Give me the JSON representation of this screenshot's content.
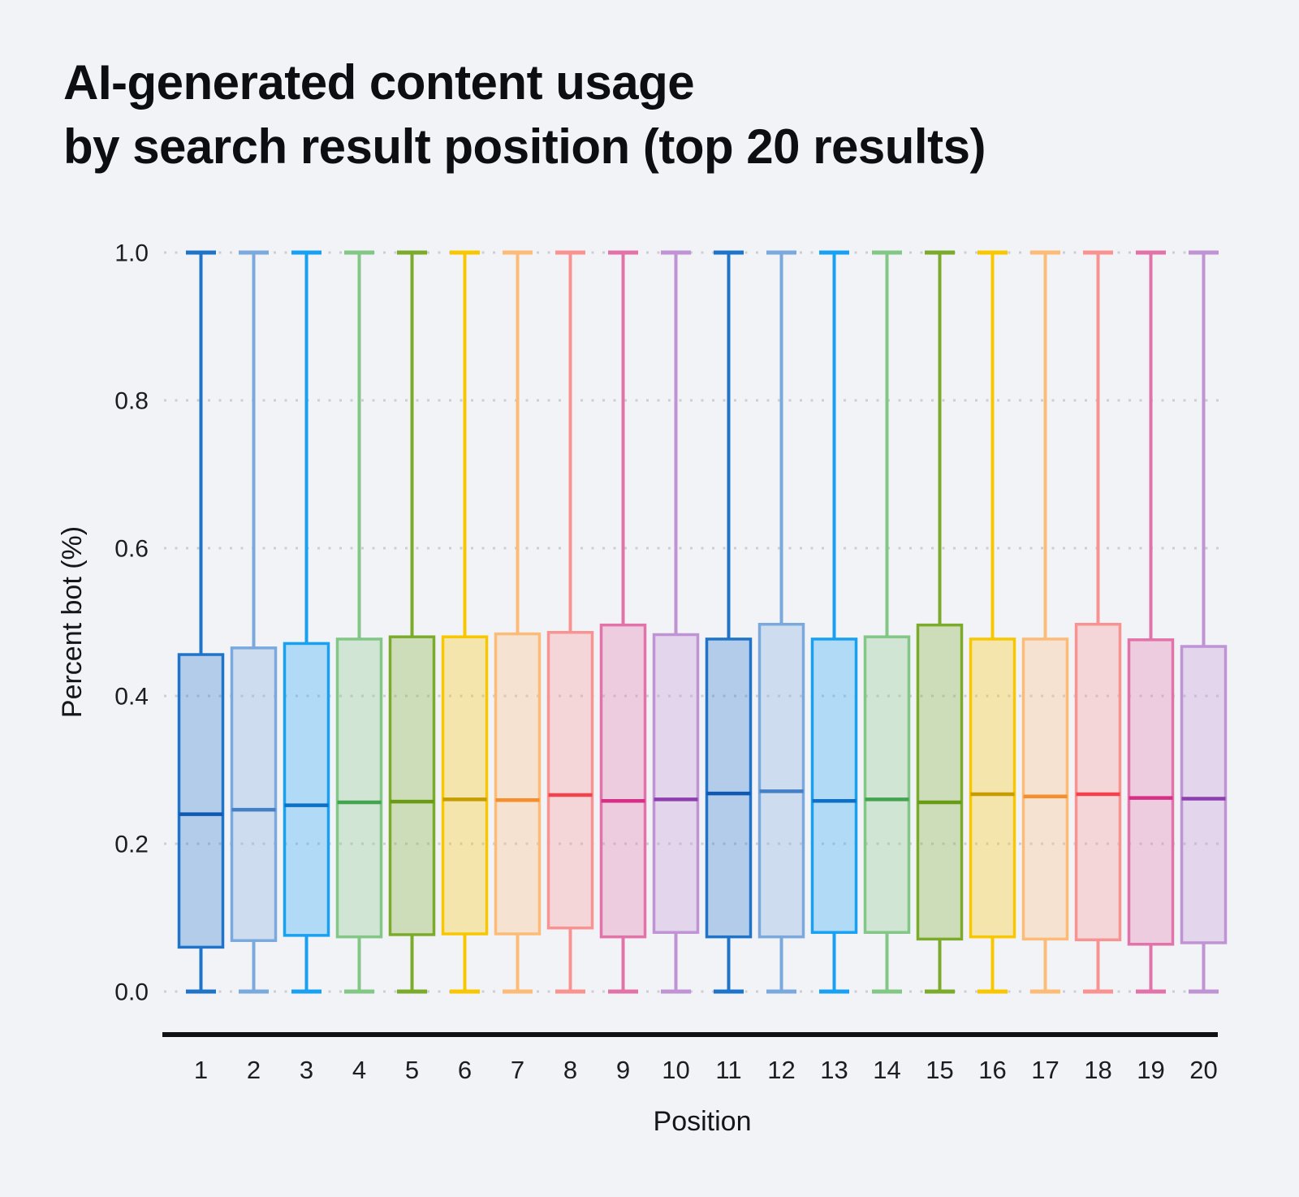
{
  "page": {
    "background": "#f2f3f6"
  },
  "title": {
    "line1": "AI-generated content usage",
    "line2": "by search result position (top 20 results)"
  },
  "chart_data": {
    "type": "box",
    "title": "AI-generated content usage by search result position (top 20 results)",
    "xlabel": "Position",
    "ylabel": "Percent bot (%)",
    "ylim": [
      0.0,
      1.0
    ],
    "yticks": [
      0.0,
      0.2,
      0.4,
      0.6,
      0.8,
      1.0
    ],
    "ytick_labels": [
      "0.0",
      "0.2",
      "0.4",
      "0.6",
      "0.8",
      "1.0"
    ],
    "grid": "horizontal dotted, color #cdced4, drawn under semi-transparent boxes",
    "legend": "none",
    "categories": [
      "1",
      "2",
      "3",
      "4",
      "5",
      "6",
      "7",
      "8",
      "9",
      "10",
      "11",
      "12",
      "13",
      "14",
      "15",
      "16",
      "17",
      "18",
      "19",
      "20"
    ],
    "box_fill_opacity": 0.3,
    "series": [
      {
        "position": "1",
        "whisker_low": 0.0,
        "q1": 0.06,
        "median": 0.24,
        "q3": 0.456,
        "whisker_high": 1.0,
        "color": "#1f74c9",
        "median_color": "#0e59b4"
      },
      {
        "position": "2",
        "whisker_low": 0.0,
        "q1": 0.069,
        "median": 0.246,
        "q3": 0.465,
        "whisker_high": 1.0,
        "color": "#7aa9dd",
        "median_color": "#4480c6"
      },
      {
        "position": "3",
        "whisker_low": 0.0,
        "q1": 0.076,
        "median": 0.252,
        "q3": 0.471,
        "whisker_high": 1.0,
        "color": "#18a1f2",
        "median_color": "#0d70c6"
      },
      {
        "position": "4",
        "whisker_low": 0.0,
        "q1": 0.074,
        "median": 0.256,
        "q3": 0.477,
        "whisker_high": 1.0,
        "color": "#82c785",
        "median_color": "#43a34f"
      },
      {
        "position": "5",
        "whisker_low": 0.0,
        "q1": 0.077,
        "median": 0.257,
        "q3": 0.48,
        "whisker_high": 1.0,
        "color": "#7cab2b",
        "median_color": "#699c14"
      },
      {
        "position": "6",
        "whisker_low": 0.0,
        "q1": 0.078,
        "median": 0.26,
        "q3": 0.48,
        "whisker_high": 1.0,
        "color": "#f8c700",
        "median_color": "#c79c01"
      },
      {
        "position": "7",
        "whisker_low": 0.0,
        "q1": 0.078,
        "median": 0.259,
        "q3": 0.484,
        "whisker_high": 1.0,
        "color": "#fcbc77",
        "median_color": "#f78e2d"
      },
      {
        "position": "8",
        "whisker_low": 0.0,
        "q1": 0.086,
        "median": 0.266,
        "q3": 0.486,
        "whisker_high": 1.0,
        "color": "#f89392",
        "median_color": "#f4424d"
      },
      {
        "position": "9",
        "whisker_low": 0.0,
        "q1": 0.074,
        "median": 0.258,
        "q3": 0.496,
        "whisker_high": 1.0,
        "color": "#e273a9",
        "median_color": "#d62f86"
      },
      {
        "position": "10",
        "whisker_low": 0.0,
        "q1": 0.08,
        "median": 0.26,
        "q3": 0.483,
        "whisker_high": 1.0,
        "color": "#bf93d4",
        "median_color": "#8d3fae"
      },
      {
        "position": "11",
        "whisker_low": 0.0,
        "q1": 0.074,
        "median": 0.268,
        "q3": 0.477,
        "whisker_high": 1.0,
        "color": "#1f74c9",
        "median_color": "#0e59b4"
      },
      {
        "position": "12",
        "whisker_low": 0.0,
        "q1": 0.074,
        "median": 0.271,
        "q3": 0.497,
        "whisker_high": 1.0,
        "color": "#7aa9dd",
        "median_color": "#4480c6"
      },
      {
        "position": "13",
        "whisker_low": 0.0,
        "q1": 0.08,
        "median": 0.258,
        "q3": 0.477,
        "whisker_high": 1.0,
        "color": "#18a1f2",
        "median_color": "#0d70c6"
      },
      {
        "position": "14",
        "whisker_low": 0.0,
        "q1": 0.08,
        "median": 0.26,
        "q3": 0.48,
        "whisker_high": 1.0,
        "color": "#82c785",
        "median_color": "#43a34f"
      },
      {
        "position": "15",
        "whisker_low": 0.0,
        "q1": 0.071,
        "median": 0.256,
        "q3": 0.496,
        "whisker_high": 1.0,
        "color": "#7cab2b",
        "median_color": "#699c14"
      },
      {
        "position": "16",
        "whisker_low": 0.0,
        "q1": 0.074,
        "median": 0.267,
        "q3": 0.477,
        "whisker_high": 1.0,
        "color": "#f8c700",
        "median_color": "#c79c01"
      },
      {
        "position": "17",
        "whisker_low": 0.0,
        "q1": 0.071,
        "median": 0.264,
        "q3": 0.477,
        "whisker_high": 1.0,
        "color": "#fcbc77",
        "median_color": "#f78e2d"
      },
      {
        "position": "18",
        "whisker_low": 0.0,
        "q1": 0.07,
        "median": 0.267,
        "q3": 0.497,
        "whisker_high": 1.0,
        "color": "#f89392",
        "median_color": "#f4424d"
      },
      {
        "position": "19",
        "whisker_low": 0.0,
        "q1": 0.064,
        "median": 0.262,
        "q3": 0.476,
        "whisker_high": 1.0,
        "color": "#e273a9",
        "median_color": "#d62f86"
      },
      {
        "position": "20",
        "whisker_low": 0.0,
        "q1": 0.066,
        "median": 0.261,
        "q3": 0.467,
        "whisker_high": 1.0,
        "color": "#bf93d4",
        "median_color": "#8d3fae"
      }
    ]
  }
}
